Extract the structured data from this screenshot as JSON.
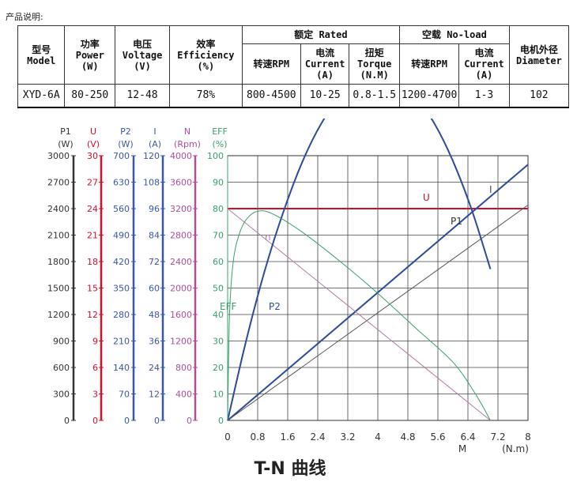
{
  "header_note": "产品说明:",
  "spec_table": {
    "col_model": "型号\nModel",
    "col_power": "功率\nPower\n(W)",
    "col_voltage": "电压\nVoltage\n(V)",
    "col_efficiency": "效率\nEfficiency\n(%)",
    "group_rated": "额定 Rated",
    "group_noload": "空载 No-load",
    "col_diameter": "电机外径\nDiameter",
    "rated_speed": "转速RPM",
    "rated_current": "电流\nCurrent\n(A)",
    "rated_torque": "扭矩\nTorque\n(N.M)",
    "noload_speed": "转速RPM",
    "noload_current": "电流\nCurrent\n(A)",
    "values": {
      "model": "XYD-6A",
      "power": "80-250",
      "voltage": "12-48",
      "efficiency": "78%",
      "rated_speed": "800-4500",
      "rated_current": "10-25",
      "rated_torque": "0.8-1.5",
      "noload_speed": "1200-4700",
      "noload_current": "1-3",
      "diameter": "102"
    }
  },
  "chart_data": {
    "type": "line",
    "title": "T-N 曲线",
    "xlabel": "M",
    "xunit": "(N.m)",
    "xlim": [
      0,
      8
    ],
    "x_ticks": [
      "0",
      "0.8",
      "1.6",
      "2.4",
      "3.2",
      "4",
      "4.8",
      "5.6",
      "6.4",
      "7.2",
      "8"
    ],
    "grid": true,
    "axes": [
      {
        "name": "P1",
        "unit": "(W)",
        "color": "#333333",
        "ticks": [
          "0",
          "300",
          "600",
          "900",
          "1200",
          "1500",
          "1800",
          "2100",
          "2400",
          "2700",
          "3000"
        ]
      },
      {
        "name": "U",
        "unit": "(V)",
        "color": "#d0102a",
        "ticks": [
          "0",
          "3",
          "6",
          "9",
          "12",
          "15",
          "18",
          "21",
          "24",
          "27",
          "30"
        ]
      },
      {
        "name": "P2",
        "unit": "(W)",
        "color": "#3a56a8",
        "ticks": [
          "0",
          "70",
          "140",
          "210",
          "280",
          "350",
          "420",
          "490",
          "560",
          "630",
          "700"
        ]
      },
      {
        "name": "I",
        "unit": "(A)",
        "color": "#3a56a8",
        "ticks": [
          "0",
          "12",
          "24",
          "36",
          "48",
          "60",
          "72",
          "84",
          "96",
          "108",
          "120"
        ]
      },
      {
        "name": "N",
        "unit": "(Rpm)",
        "color": "#b04d9a",
        "ticks": [
          "0",
          "400",
          "800",
          "1200",
          "1600",
          "2000",
          "2400",
          "2800",
          "3200",
          "3600",
          "4000"
        ]
      },
      {
        "name": "EFF",
        "unit": "(%)",
        "color": "#3aa06a",
        "ticks": [
          "0",
          "10",
          "20",
          "30",
          "40",
          "50",
          "60",
          "70",
          "80",
          "90",
          "100"
        ]
      }
    ],
    "series": [
      {
        "name": "U",
        "color": "#d0102a",
        "axis": "U",
        "x": [
          0,
          8.0
        ],
        "y": [
          24,
          24
        ]
      },
      {
        "name": "I",
        "color": "#2c4a9a",
        "axis": "I",
        "x": [
          0,
          8.0
        ],
        "y": [
          0,
          116
        ]
      },
      {
        "name": "P1",
        "color": "#555555",
        "axis": "P1",
        "x": [
          0,
          8.0
        ],
        "y": [
          0,
          2440
        ]
      },
      {
        "name": "n",
        "color": "#b07aa8",
        "axis": "N",
        "x": [
          0,
          7.0
        ],
        "y": [
          3200,
          0
        ]
      },
      {
        "name": "P2",
        "color": "#2c4a9a",
        "axis": "P2",
        "x": [
          0,
          0.5,
          1.0,
          1.5,
          2.0,
          2.5,
          3.0,
          3.5,
          4.0,
          4.5,
          5.0,
          5.5,
          6.0,
          6.5,
          7.0
        ],
        "y": [
          0,
          214,
          400,
          556,
          686,
          786,
          857,
          900,
          914,
          900,
          857,
          786,
          686,
          557,
          400
        ]
      },
      {
        "name": "EFF",
        "color": "#3aa06a",
        "axis": "EFF",
        "x": [
          0,
          0.05,
          0.15,
          0.3,
          0.5,
          0.8,
          1.2,
          2.0,
          3.0,
          4.0,
          5.0,
          6.0,
          6.6,
          7.0
        ],
        "y": [
          0,
          40,
          60,
          70,
          76,
          79,
          78,
          71,
          60,
          48,
          35,
          22,
          10,
          0
        ]
      }
    ]
  }
}
